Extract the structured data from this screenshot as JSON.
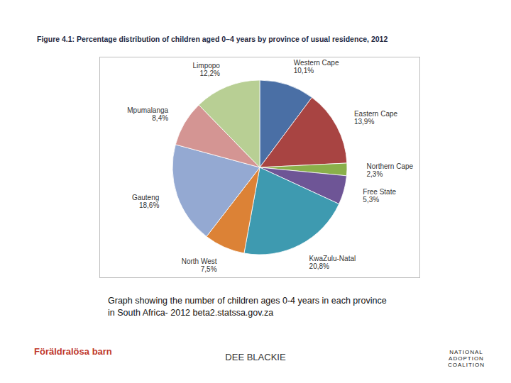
{
  "chart_data": {
    "type": "pie",
    "title": "Figure 4.1:   Percentage distribution of children aged 0–4 years by province of usual residence, 2012",
    "categories": [
      "Western Cape",
      "Eastern Cape",
      "Northern Cape",
      "Free State",
      "KwaZulu-Natal",
      "North West",
      "Gauteng",
      "Mpumalanga",
      "Limpopo"
    ],
    "values": [
      10.1,
      13.9,
      2.3,
      5.3,
      20.8,
      7.5,
      18.6,
      8.4,
      12.2
    ],
    "value_labels": [
      "10,1%",
      "13,9%",
      "2,3%",
      "5,3%",
      "20,8%",
      "7,5%",
      "18,6%",
      "8,4%",
      "12,2%"
    ],
    "colors": [
      "#4a6fa5",
      "#a84442",
      "#8ab04a",
      "#6e5596",
      "#3e9ab0",
      "#dc8236",
      "#94a9d2",
      "#d49593",
      "#b8cf94"
    ],
    "data_labels": true,
    "tick_labels": false
  },
  "caption": "Graph showing the number of children ages 0-4 years in each province in South Africa- 2012 beta2.statssa.gov.za",
  "author": "DEE BLACKIE",
  "logos": [
    "Föräldralösa barn",
    "NATIONAL ADOPTION COALITION"
  ]
}
